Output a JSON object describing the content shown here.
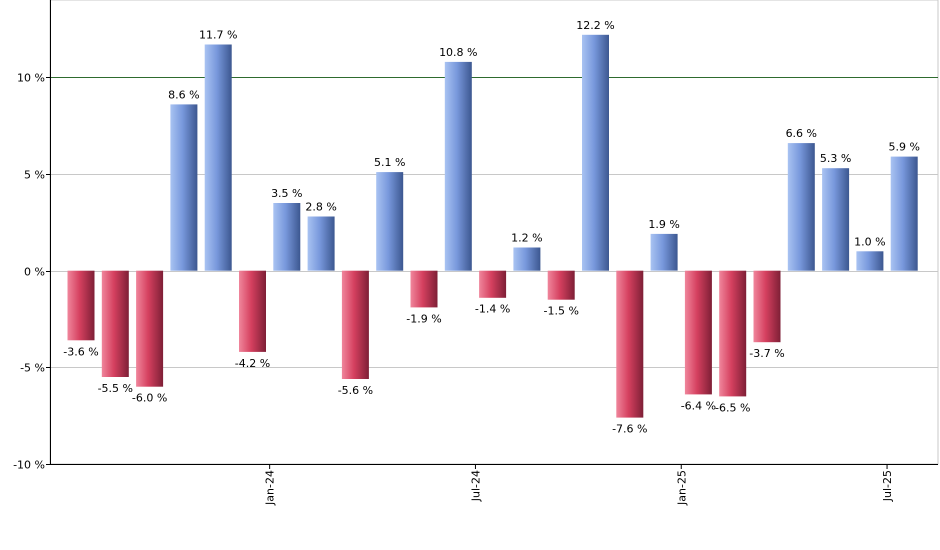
{
  "chart_data": {
    "type": "bar",
    "title": "",
    "xlabel": "",
    "ylabel": "",
    "ylim": [
      -10,
      14
    ],
    "yticks": [
      {
        "value": 10,
        "label": "10 %"
      },
      {
        "value": 5,
        "label": "5 %"
      },
      {
        "value": 0,
        "label": "0 %"
      },
      {
        "value": -5,
        "label": "-5 %"
      },
      {
        "value": -10,
        "label": "-10 %"
      }
    ],
    "xticks": [
      {
        "index": 5.5,
        "label": "Jan-24"
      },
      {
        "index": 11.5,
        "label": "Jul-24"
      },
      {
        "index": 17.5,
        "label": "Jan-25"
      },
      {
        "index": 23.5,
        "label": "Jul-25"
      }
    ],
    "reference_line": {
      "value": 10,
      "color": "#2e6b2e"
    },
    "grid": true,
    "colors": {
      "positive": "#6f93d8",
      "negative": "#d6405f"
    },
    "values": [
      -3.6,
      -5.5,
      -6.0,
      8.6,
      11.7,
      -4.2,
      3.5,
      2.8,
      -5.6,
      5.1,
      -1.9,
      10.8,
      -1.4,
      1.2,
      -1.5,
      12.2,
      -7.6,
      1.9,
      -6.4,
      -6.5,
      -3.7,
      6.6,
      5.3,
      1.0,
      5.9
    ],
    "labels": [
      "-3.6 %",
      "-5.5 %",
      "-6.0 %",
      "8.6 %",
      "11.7 %",
      "-4.2 %",
      "3.5 %",
      "2.8 %",
      "-5.6 %",
      "5.1 %",
      "-1.9 %",
      "10.8 %",
      "-1.4 %",
      "1.2 %",
      "-1.5 %",
      "12.2 %",
      "-7.6 %",
      "1.9 %",
      "-6.4 %",
      "-6.5 %",
      "-3.7 %",
      "6.6 %",
      "5.3 %",
      "1.0 %",
      "5.9 %"
    ]
  }
}
